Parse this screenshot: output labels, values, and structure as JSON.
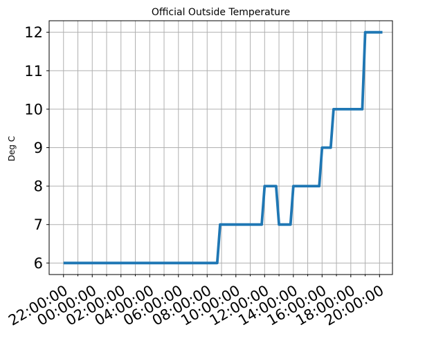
{
  "chart_data": {
    "type": "line",
    "title": "Official Outside Temperature",
    "xlabel": "",
    "ylabel": "Deg C",
    "x_tick_labels": [
      "22:00:00",
      "00:00:00",
      "02:00:00",
      "04:00:00",
      "06:00:00",
      "08:00:00",
      "10:00:00",
      "12:00:00",
      "14:00:00",
      "16:00:00",
      "18:00:00",
      "20:00:00"
    ],
    "y_ticks": [
      6,
      7,
      8,
      9,
      10,
      11,
      12
    ],
    "x_hours": [
      -1.0,
      9.7,
      9.9,
      12.8,
      13.0,
      13.8,
      14.0,
      14.8,
      15.0,
      16.8,
      17.0,
      17.6,
      17.8,
      19.8,
      20.0,
      21.2
    ],
    "y": [
      6,
      6,
      7,
      7,
      8,
      8,
      7,
      7,
      8,
      8,
      9,
      9,
      10,
      10,
      12,
      12
    ],
    "series_color": "#1f77b4",
    "grid": true
  }
}
